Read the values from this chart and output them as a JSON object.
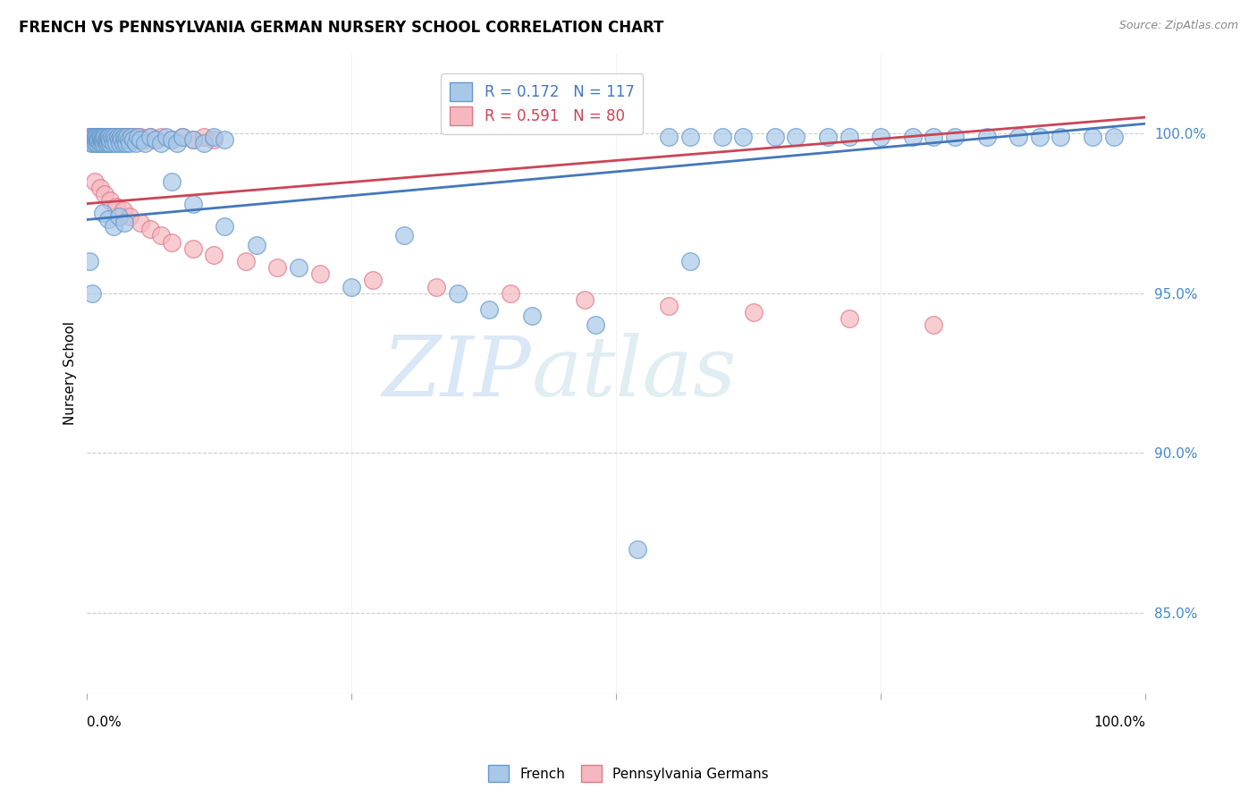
{
  "title": "FRENCH VS PENNSYLVANIA GERMAN NURSERY SCHOOL CORRELATION CHART",
  "source": "Source: ZipAtlas.com",
  "ylabel": "Nursery School",
  "ytick_labels": [
    "85.0%",
    "90.0%",
    "95.0%",
    "100.0%"
  ],
  "ytick_values": [
    0.85,
    0.9,
    0.95,
    1.0
  ],
  "xmin": 0.0,
  "xmax": 1.0,
  "ymin": 0.825,
  "ymax": 1.025,
  "blue_R": 0.172,
  "blue_N": 117,
  "pink_R": 0.591,
  "pink_N": 80,
  "blue_color": "#a8c8e8",
  "blue_edge": "#6699cc",
  "pink_color": "#f5b8c0",
  "pink_edge": "#e07888",
  "blue_line_color": "#4477bb",
  "pink_line_color": "#cc4455",
  "watermark_zip_color": "#c5d8ee",
  "watermark_atlas_color": "#c5d8ee",
  "blue_trend_x0": 0.0,
  "blue_trend_y0": 0.973,
  "blue_trend_x1": 1.0,
  "blue_trend_y1": 1.003,
  "pink_trend_x0": 0.0,
  "pink_trend_y0": 0.978,
  "pink_trend_x1": 1.0,
  "pink_trend_y1": 1.005,
  "blue_cluster_x": [
    0.002,
    0.003,
    0.004,
    0.005,
    0.005,
    0.006,
    0.006,
    0.007,
    0.007,
    0.008,
    0.008,
    0.009,
    0.009,
    0.01,
    0.01,
    0.011,
    0.011,
    0.012,
    0.012,
    0.013,
    0.013,
    0.014,
    0.014,
    0.015,
    0.015,
    0.016,
    0.016,
    0.017,
    0.017,
    0.018,
    0.018,
    0.019,
    0.019,
    0.02,
    0.02,
    0.021,
    0.021,
    0.022,
    0.022,
    0.023,
    0.024,
    0.025,
    0.026,
    0.027,
    0.028,
    0.029,
    0.03,
    0.031,
    0.032,
    0.033,
    0.034,
    0.035,
    0.036,
    0.037,
    0.038,
    0.039,
    0.04,
    0.042,
    0.044,
    0.046,
    0.048,
    0.05,
    0.055,
    0.06,
    0.065,
    0.07,
    0.075,
    0.08,
    0.085,
    0.09,
    0.1,
    0.11,
    0.12,
    0.13,
    0.015,
    0.02,
    0.025,
    0.03,
    0.035
  ],
  "blue_cluster_y": [
    0.999,
    0.998,
    0.997,
    0.999,
    0.998,
    0.999,
    0.997,
    0.998,
    0.999,
    0.997,
    0.999,
    0.998,
    0.999,
    0.997,
    0.998,
    0.999,
    0.998,
    0.997,
    0.999,
    0.998,
    0.999,
    0.997,
    0.998,
    0.999,
    0.998,
    0.997,
    0.999,
    0.998,
    0.999,
    0.997,
    0.998,
    0.999,
    0.998,
    0.997,
    0.999,
    0.998,
    0.999,
    0.997,
    0.998,
    0.999,
    0.998,
    0.997,
    0.999,
    0.998,
    0.997,
    0.999,
    0.998,
    0.997,
    0.999,
    0.998,
    0.997,
    0.999,
    0.998,
    0.997,
    0.999,
    0.998,
    0.997,
    0.999,
    0.998,
    0.997,
    0.999,
    0.998,
    0.997,
    0.999,
    0.998,
    0.997,
    0.999,
    0.998,
    0.997,
    0.999,
    0.998,
    0.997,
    0.999,
    0.998,
    0.975,
    0.973,
    0.971,
    0.974,
    0.972
  ],
  "blue_mid_x": [
    0.55,
    0.57,
    0.6,
    0.62,
    0.65,
    0.67,
    0.7,
    0.72,
    0.75,
    0.78,
    0.8,
    0.82,
    0.85,
    0.88,
    0.9,
    0.92,
    0.95,
    0.97
  ],
  "blue_mid_y": [
    0.999,
    0.999,
    0.999,
    0.999,
    0.999,
    0.999,
    0.999,
    0.999,
    0.999,
    0.999,
    0.999,
    0.999,
    0.999,
    0.999,
    0.999,
    0.999,
    0.999,
    0.999
  ],
  "blue_outlier_x": [
    0.002,
    0.005,
    0.08,
    0.1,
    0.13,
    0.16,
    0.2,
    0.25,
    0.3,
    0.35,
    0.38,
    0.42,
    0.48,
    0.52,
    0.57
  ],
  "blue_outlier_y": [
    0.96,
    0.95,
    0.985,
    0.978,
    0.971,
    0.965,
    0.958,
    0.952,
    0.968,
    0.95,
    0.945,
    0.943,
    0.94,
    0.87,
    0.96
  ],
  "pink_cluster_x": [
    0.002,
    0.003,
    0.004,
    0.005,
    0.005,
    0.006,
    0.006,
    0.007,
    0.007,
    0.008,
    0.009,
    0.01,
    0.011,
    0.012,
    0.013,
    0.014,
    0.015,
    0.016,
    0.017,
    0.018,
    0.019,
    0.02,
    0.021,
    0.022,
    0.023,
    0.024,
    0.025,
    0.026,
    0.027,
    0.028,
    0.029,
    0.03,
    0.031,
    0.032,
    0.033,
    0.034,
    0.035,
    0.036,
    0.037,
    0.038,
    0.04,
    0.042,
    0.044,
    0.046,
    0.048,
    0.05,
    0.055,
    0.06,
    0.065,
    0.07,
    0.08,
    0.09,
    0.1,
    0.11,
    0.12,
    0.007,
    0.012,
    0.017,
    0.022,
    0.028,
    0.034,
    0.04,
    0.05,
    0.06,
    0.07,
    0.08,
    0.1,
    0.12,
    0.15,
    0.18,
    0.22,
    0.27,
    0.33,
    0.4,
    0.47,
    0.55,
    0.63,
    0.72,
    0.8
  ],
  "pink_cluster_y": [
    0.999,
    0.999,
    0.999,
    0.999,
    0.998,
    0.999,
    0.998,
    0.999,
    0.998,
    0.999,
    0.998,
    0.999,
    0.998,
    0.999,
    0.998,
    0.999,
    0.998,
    0.999,
    0.998,
    0.999,
    0.998,
    0.999,
    0.998,
    0.999,
    0.998,
    0.999,
    0.998,
    0.999,
    0.998,
    0.999,
    0.998,
    0.999,
    0.998,
    0.999,
    0.998,
    0.999,
    0.998,
    0.999,
    0.998,
    0.999,
    0.998,
    0.999,
    0.998,
    0.999,
    0.998,
    0.999,
    0.998,
    0.999,
    0.998,
    0.999,
    0.998,
    0.999,
    0.998,
    0.999,
    0.998,
    0.985,
    0.983,
    0.981,
    0.979,
    0.977,
    0.976,
    0.974,
    0.972,
    0.97,
    0.968,
    0.966,
    0.964,
    0.962,
    0.96,
    0.958,
    0.956,
    0.954,
    0.952,
    0.95,
    0.948,
    0.946,
    0.944,
    0.942,
    0.94
  ]
}
